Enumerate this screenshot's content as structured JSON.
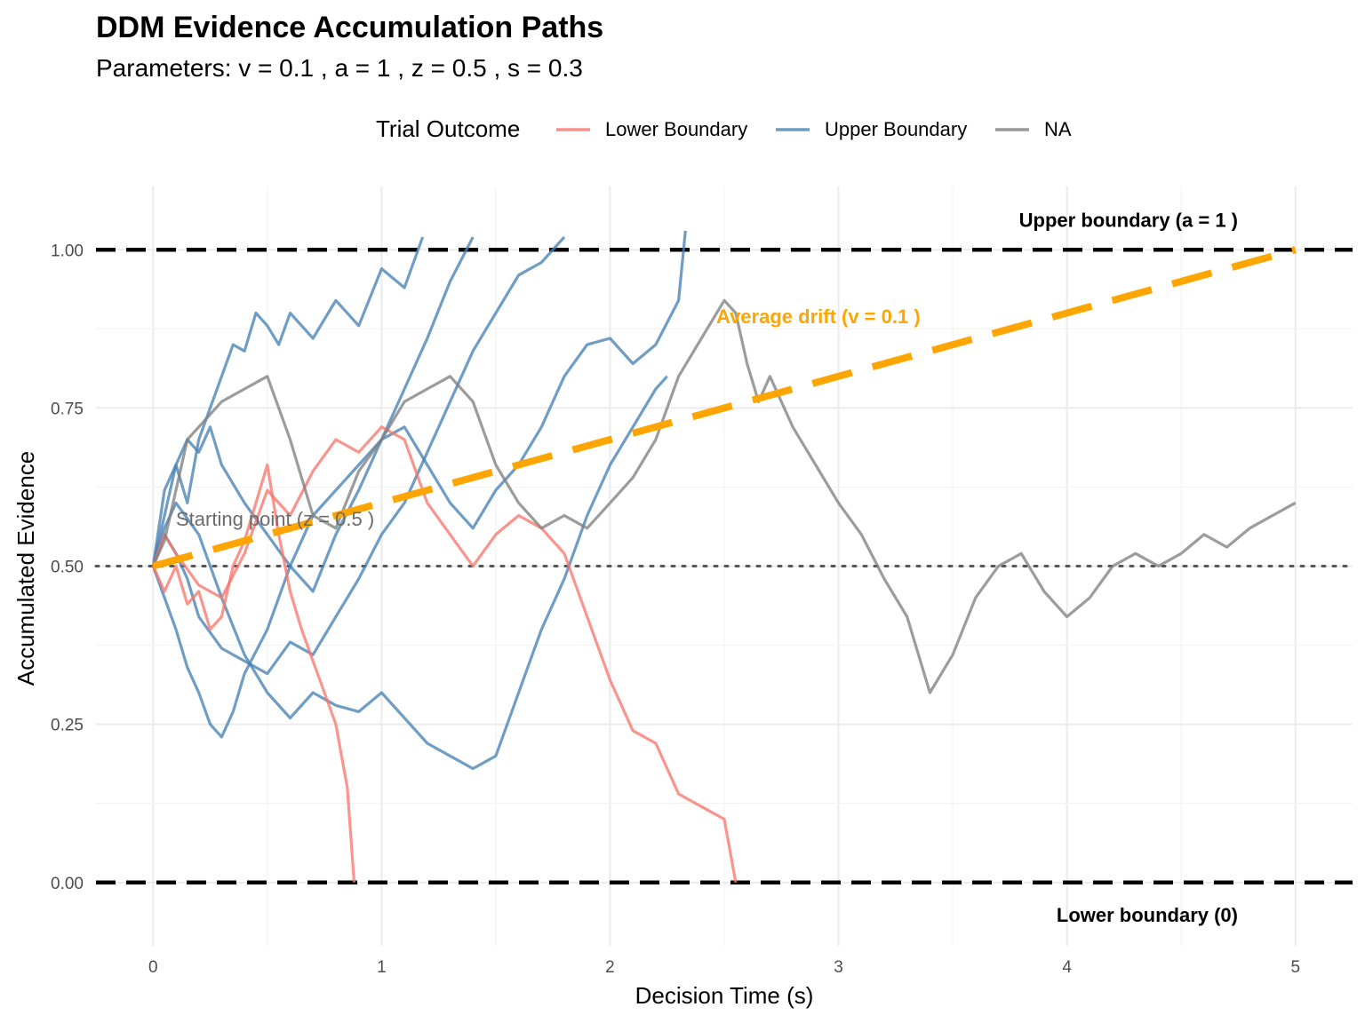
{
  "chart_data": {
    "type": "line",
    "title": "DDM Evidence Accumulation Paths",
    "subtitle": "Parameters: v = 0.1 , a = 1 , z = 0.5 , s = 0.3",
    "xlabel": "Decision Time (s)",
    "ylabel": "Accumulated Evidence",
    "xlim": [
      -0.25,
      5.25
    ],
    "ylim": [
      -0.1,
      1.1
    ],
    "x_ticks": [
      0,
      1,
      2,
      3,
      4,
      5
    ],
    "x_tick_labels": [
      "0",
      "1",
      "2",
      "3",
      "4",
      "5"
    ],
    "y_ticks": [
      0,
      0.25,
      0.5,
      0.75,
      1.0
    ],
    "y_tick_labels": [
      "0.00",
      "0.25",
      "0.50",
      "0.75",
      "1.00"
    ],
    "grid": true,
    "legend": {
      "title": "Trial Outcome",
      "placement": "top",
      "entries": [
        {
          "label": "Lower Boundary",
          "color": "#f8766d"
        },
        {
          "label": "Upper Boundary",
          "color": "#4682b4"
        },
        {
          "label": "NA",
          "color": "#808080"
        }
      ]
    },
    "reference_lines": {
      "upper_boundary": {
        "y": 1.0,
        "label": "Upper boundary (a = 1 )"
      },
      "lower_boundary": {
        "y": 0.0,
        "label": "Lower boundary (0)"
      },
      "starting_point": {
        "y": 0.5,
        "label": "Starting point (z = 0.5 )"
      },
      "average_drift": {
        "x": [
          0,
          5
        ],
        "y": [
          0.5,
          1.0
        ],
        "label": "Average drift (v = 0.1 )",
        "color": "#ffa500"
      }
    },
    "series": [
      {
        "outcome": "Upper Boundary",
        "points": [
          [
            0,
            0.5
          ],
          [
            0.05,
            0.62
          ],
          [
            0.1,
            0.66
          ],
          [
            0.15,
            0.6
          ],
          [
            0.2,
            0.7
          ],
          [
            0.25,
            0.75
          ],
          [
            0.3,
            0.8
          ],
          [
            0.35,
            0.85
          ],
          [
            0.4,
            0.84
          ],
          [
            0.45,
            0.9
          ],
          [
            0.5,
            0.88
          ],
          [
            0.55,
            0.85
          ],
          [
            0.6,
            0.9
          ],
          [
            0.7,
            0.86
          ],
          [
            0.8,
            0.92
          ],
          [
            0.9,
            0.88
          ],
          [
            1.0,
            0.97
          ],
          [
            1.1,
            0.94
          ],
          [
            1.18,
            1.02
          ]
        ]
      },
      {
        "outcome": "Upper Boundary",
        "points": [
          [
            0,
            0.5
          ],
          [
            0.05,
            0.58
          ],
          [
            0.1,
            0.66
          ],
          [
            0.15,
            0.7
          ],
          [
            0.2,
            0.68
          ],
          [
            0.25,
            0.72
          ],
          [
            0.3,
            0.66
          ],
          [
            0.4,
            0.6
          ],
          [
            0.5,
            0.55
          ],
          [
            0.6,
            0.5
          ],
          [
            0.7,
            0.46
          ],
          [
            0.8,
            0.55
          ],
          [
            0.9,
            0.62
          ],
          [
            1.0,
            0.7
          ],
          [
            1.1,
            0.78
          ],
          [
            1.2,
            0.86
          ],
          [
            1.3,
            0.95
          ],
          [
            1.4,
            1.02
          ]
        ]
      },
      {
        "outcome": "Upper Boundary",
        "points": [
          [
            0,
            0.5
          ],
          [
            0.05,
            0.45
          ],
          [
            0.1,
            0.4
          ],
          [
            0.15,
            0.34
          ],
          [
            0.2,
            0.3
          ],
          [
            0.25,
            0.25
          ],
          [
            0.3,
            0.23
          ],
          [
            0.35,
            0.27
          ],
          [
            0.4,
            0.33
          ],
          [
            0.5,
            0.4
          ],
          [
            0.6,
            0.5
          ],
          [
            0.7,
            0.58
          ],
          [
            0.8,
            0.62
          ],
          [
            0.9,
            0.66
          ],
          [
            1.0,
            0.7
          ],
          [
            1.1,
            0.72
          ],
          [
            1.2,
            0.66
          ],
          [
            1.3,
            0.6
          ],
          [
            1.4,
            0.56
          ],
          [
            1.5,
            0.62
          ],
          [
            1.6,
            0.66
          ],
          [
            1.7,
            0.72
          ],
          [
            1.8,
            0.8
          ],
          [
            1.9,
            0.85
          ],
          [
            2.0,
            0.86
          ],
          [
            2.1,
            0.82
          ],
          [
            2.2,
            0.85
          ],
          [
            2.3,
            0.92
          ],
          [
            2.33,
            1.03
          ]
        ]
      },
      {
        "outcome": "Upper Boundary",
        "points": [
          [
            0,
            0.5
          ],
          [
            0.05,
            0.55
          ],
          [
            0.1,
            0.52
          ],
          [
            0.15,
            0.48
          ],
          [
            0.2,
            0.42
          ],
          [
            0.3,
            0.37
          ],
          [
            0.4,
            0.35
          ],
          [
            0.5,
            0.33
          ],
          [
            0.6,
            0.38
          ],
          [
            0.7,
            0.36
          ],
          [
            0.8,
            0.42
          ],
          [
            0.9,
            0.48
          ],
          [
            1.0,
            0.55
          ],
          [
            1.1,
            0.6
          ],
          [
            1.2,
            0.68
          ],
          [
            1.3,
            0.76
          ],
          [
            1.4,
            0.84
          ],
          [
            1.5,
            0.9
          ],
          [
            1.6,
            0.96
          ],
          [
            1.7,
            0.98
          ],
          [
            1.8,
            1.02
          ]
        ]
      },
      {
        "outcome": "Upper Boundary",
        "points": [
          [
            0,
            0.5
          ],
          [
            0.05,
            0.56
          ],
          [
            0.1,
            0.6
          ],
          [
            0.2,
            0.55
          ],
          [
            0.3,
            0.45
          ],
          [
            0.4,
            0.36
          ],
          [
            0.5,
            0.3
          ],
          [
            0.6,
            0.26
          ],
          [
            0.7,
            0.3
          ],
          [
            0.8,
            0.28
          ],
          [
            0.9,
            0.27
          ],
          [
            1.0,
            0.3
          ],
          [
            1.1,
            0.26
          ],
          [
            1.2,
            0.22
          ],
          [
            1.3,
            0.2
          ],
          [
            1.4,
            0.18
          ],
          [
            1.5,
            0.2
          ],
          [
            1.6,
            0.3
          ],
          [
            1.7,
            0.4
          ],
          [
            1.8,
            0.48
          ],
          [
            1.9,
            0.58
          ],
          [
            2.0,
            0.66
          ],
          [
            2.1,
            0.72
          ],
          [
            2.2,
            0.78
          ],
          [
            2.25,
            0.8
          ]
        ]
      },
      {
        "outcome": "Lower Boundary",
        "points": [
          [
            0,
            0.5
          ],
          [
            0.05,
            0.46
          ],
          [
            0.1,
            0.5
          ],
          [
            0.15,
            0.44
          ],
          [
            0.2,
            0.46
          ],
          [
            0.25,
            0.4
          ],
          [
            0.3,
            0.42
          ],
          [
            0.35,
            0.5
          ],
          [
            0.4,
            0.54
          ],
          [
            0.45,
            0.6
          ],
          [
            0.5,
            0.66
          ],
          [
            0.55,
            0.55
          ],
          [
            0.6,
            0.46
          ],
          [
            0.65,
            0.4
          ],
          [
            0.7,
            0.35
          ],
          [
            0.75,
            0.3
          ],
          [
            0.8,
            0.25
          ],
          [
            0.85,
            0.15
          ],
          [
            0.88,
            0.0
          ]
        ]
      },
      {
        "outcome": "Lower Boundary",
        "points": [
          [
            0,
            0.5
          ],
          [
            0.05,
            0.55
          ],
          [
            0.1,
            0.52
          ],
          [
            0.2,
            0.47
          ],
          [
            0.3,
            0.45
          ],
          [
            0.4,
            0.52
          ],
          [
            0.5,
            0.62
          ],
          [
            0.6,
            0.58
          ],
          [
            0.7,
            0.65
          ],
          [
            0.8,
            0.7
          ],
          [
            0.9,
            0.68
          ],
          [
            1.0,
            0.72
          ],
          [
            1.1,
            0.7
          ],
          [
            1.2,
            0.6
          ],
          [
            1.3,
            0.55
          ],
          [
            1.4,
            0.5
          ],
          [
            1.5,
            0.55
          ],
          [
            1.6,
            0.58
          ],
          [
            1.7,
            0.56
          ],
          [
            1.8,
            0.52
          ],
          [
            1.9,
            0.42
          ],
          [
            2.0,
            0.32
          ],
          [
            2.1,
            0.24
          ],
          [
            2.2,
            0.22
          ],
          [
            2.3,
            0.14
          ],
          [
            2.4,
            0.12
          ],
          [
            2.5,
            0.1
          ],
          [
            2.55,
            0.0
          ]
        ]
      },
      {
        "outcome": "NA",
        "points": [
          [
            0,
            0.5
          ],
          [
            0.05,
            0.54
          ],
          [
            0.1,
            0.62
          ],
          [
            0.15,
            0.7
          ],
          [
            0.2,
            0.72
          ],
          [
            0.3,
            0.76
          ],
          [
            0.4,
            0.78
          ],
          [
            0.5,
            0.8
          ],
          [
            0.6,
            0.7
          ],
          [
            0.7,
            0.58
          ],
          [
            0.8,
            0.56
          ],
          [
            0.9,
            0.65
          ],
          [
            1.0,
            0.7
          ],
          [
            1.1,
            0.76
          ],
          [
            1.2,
            0.78
          ],
          [
            1.3,
            0.8
          ],
          [
            1.4,
            0.76
          ],
          [
            1.5,
            0.66
          ],
          [
            1.6,
            0.6
          ],
          [
            1.7,
            0.56
          ],
          [
            1.8,
            0.58
          ],
          [
            1.9,
            0.56
          ],
          [
            2.0,
            0.6
          ],
          [
            2.1,
            0.64
          ],
          [
            2.2,
            0.7
          ],
          [
            2.3,
            0.8
          ],
          [
            2.4,
            0.86
          ],
          [
            2.5,
            0.92
          ],
          [
            2.55,
            0.9
          ],
          [
            2.6,
            0.82
          ],
          [
            2.65,
            0.76
          ],
          [
            2.7,
            0.8
          ],
          [
            2.8,
            0.72
          ],
          [
            2.9,
            0.66
          ],
          [
            3.0,
            0.6
          ],
          [
            3.1,
            0.55
          ],
          [
            3.2,
            0.48
          ],
          [
            3.3,
            0.42
          ],
          [
            3.4,
            0.3
          ],
          [
            3.5,
            0.36
          ],
          [
            3.6,
            0.45
          ],
          [
            3.7,
            0.5
          ],
          [
            3.8,
            0.52
          ],
          [
            3.9,
            0.46
          ],
          [
            4.0,
            0.42
          ],
          [
            4.1,
            0.45
          ],
          [
            4.2,
            0.5
          ],
          [
            4.3,
            0.52
          ],
          [
            4.4,
            0.5
          ],
          [
            4.5,
            0.52
          ],
          [
            4.6,
            0.55
          ],
          [
            4.7,
            0.53
          ],
          [
            4.8,
            0.56
          ],
          [
            4.9,
            0.58
          ],
          [
            5.0,
            0.6
          ]
        ]
      }
    ]
  }
}
